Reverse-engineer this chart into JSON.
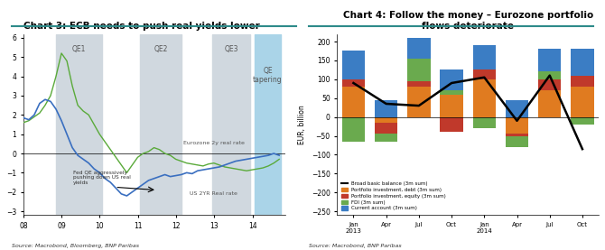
{
  "chart3_title": "Chart 3: ECB needs to push real yields lower",
  "chart3_source": "Source: Macrobond, Bloomberg, BNP Paribas",
  "chart4_title": "Chart 4: Follow the money – Eurozone portfolio\nflows deteriorate",
  "chart4_source": "Source: Macrobond, BNP Paribas",
  "chart3_ylim": [
    -3.2,
    6.2
  ],
  "chart3_yticks": [
    -3,
    -2,
    -1,
    0,
    1,
    2,
    3,
    4,
    5,
    6
  ],
  "chart3_xticks": [
    "08",
    "09",
    "10",
    "11",
    "12",
    "13",
    "14"
  ],
  "chart3_shaded_regions": [
    {
      "xmin": 0.9,
      "xmax": 2.1,
      "color": "#d0d8df",
      "label": "QE1"
    },
    {
      "xmin": 3.1,
      "xmax": 4.1,
      "color": "#d0d8df",
      "label": "QE2"
    },
    {
      "xmin": 5.0,
      "xmax": 5.9,
      "color": "#d0d8dl",
      "label": "QE3"
    },
    {
      "xmin": 6.1,
      "xmax": 6.9,
      "color": "#aad4e8",
      "label": "QE\ntapering"
    }
  ],
  "us_real_rate": [
    1.85,
    1.75,
    2.0,
    2.6,
    2.8,
    2.7,
    2.3,
    1.7,
    1.0,
    0.3,
    -0.1,
    -0.3,
    -0.5,
    -0.8,
    -1.0,
    -1.3,
    -1.5,
    -1.8,
    -2.1,
    -2.2,
    -2.0,
    -1.8,
    -1.6,
    -1.4,
    -1.3,
    -1.2,
    -1.1,
    -1.2,
    -1.15,
    -1.1,
    -1.0,
    -1.05,
    -0.9,
    -0.85,
    -0.8,
    -0.75,
    -0.7,
    -0.6,
    -0.5,
    -0.4,
    -0.35,
    -0.3,
    -0.25,
    -0.2,
    -0.15,
    -0.1,
    0.0,
    -0.1
  ],
  "ez_real_rate": [
    1.6,
    1.7,
    1.9,
    2.1,
    2.5,
    3.0,
    4.0,
    5.2,
    4.8,
    3.5,
    2.5,
    2.2,
    2.0,
    1.5,
    1.0,
    0.6,
    0.2,
    -0.2,
    -0.6,
    -1.0,
    -0.6,
    -0.2,
    0.0,
    0.1,
    0.3,
    0.2,
    0.0,
    -0.1,
    -0.3,
    -0.4,
    -0.5,
    -0.55,
    -0.6,
    -0.65,
    -0.55,
    -0.5,
    -0.6,
    -0.7,
    -0.75,
    -0.8,
    -0.85,
    -0.9,
    -0.85,
    -0.8,
    -0.75,
    -0.65,
    -0.5,
    -0.3
  ],
  "chart4_categories": [
    "Jan",
    "Apr",
    "Jul",
    "Oct",
    "Jan",
    "Apr",
    "Jul",
    "Oct"
  ],
  "chart4_years": [
    "2013",
    "2013",
    "2013",
    "2013",
    "2014",
    "2014",
    "2014",
    "2014"
  ],
  "chart4_debt": [
    80,
    -15,
    80,
    60,
    100,
    -50,
    70,
    80
  ],
  "chart4_equity": [
    20,
    -30,
    15,
    -40,
    25,
    -5,
    30,
    30
  ],
  "chart4_fdi": [
    -65,
    -20,
    60,
    10,
    -30,
    -30,
    20,
    -20
  ],
  "chart4_current": [
    75,
    45,
    55,
    55,
    65,
    45,
    60,
    70
  ],
  "chart4_broad": [
    90,
    35,
    30,
    90,
    105,
    -10,
    110,
    -85
  ],
  "chart4_ylim": [
    -260,
    220
  ],
  "chart4_yticks": [
    -250,
    -200,
    -150,
    -100,
    -50,
    0,
    50,
    100,
    150,
    200
  ],
  "color_debt": "#e07b20",
  "color_equity": "#c0392b",
  "color_fdi": "#6aaa4e",
  "color_current": "#3b7dc4",
  "color_broad": "#000000",
  "header_color": "#2e7d8a",
  "divider_color": "#2e7d8a"
}
